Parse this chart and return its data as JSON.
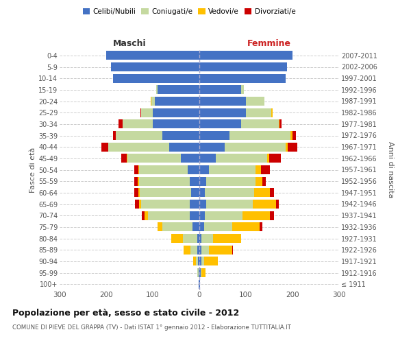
{
  "age_groups": [
    "100+",
    "95-99",
    "90-94",
    "85-89",
    "80-84",
    "75-79",
    "70-74",
    "65-69",
    "60-64",
    "55-59",
    "50-54",
    "45-49",
    "40-44",
    "35-39",
    "30-34",
    "25-29",
    "20-24",
    "15-19",
    "10-14",
    "5-9",
    "0-4"
  ],
  "birth_years": [
    "≤ 1911",
    "1912-1916",
    "1917-1921",
    "1922-1926",
    "1927-1931",
    "1932-1936",
    "1937-1941",
    "1942-1946",
    "1947-1951",
    "1952-1956",
    "1957-1961",
    "1962-1966",
    "1967-1971",
    "1972-1976",
    "1977-1981",
    "1982-1986",
    "1987-1991",
    "1992-1996",
    "1997-2001",
    "2002-2006",
    "2007-2011"
  ],
  "male_celibi": [
    1,
    2,
    3,
    4,
    5,
    15,
    20,
    20,
    18,
    20,
    25,
    40,
    65,
    80,
    100,
    100,
    95,
    90,
    185,
    190,
    200
  ],
  "male_coniugati": [
    0,
    2,
    5,
    15,
    30,
    65,
    90,
    105,
    110,
    110,
    105,
    115,
    130,
    100,
    65,
    25,
    8,
    2,
    0,
    0,
    0
  ],
  "male_vedovi": [
    0,
    1,
    5,
    15,
    25,
    10,
    8,
    5,
    3,
    2,
    1,
    1,
    0,
    0,
    0,
    0,
    1,
    0,
    0,
    0,
    0
  ],
  "male_divorziati": [
    0,
    0,
    0,
    0,
    0,
    0,
    5,
    8,
    8,
    8,
    8,
    12,
    15,
    5,
    8,
    2,
    0,
    0,
    0,
    0,
    0
  ],
  "female_celibi": [
    1,
    3,
    5,
    5,
    5,
    10,
    12,
    15,
    12,
    15,
    20,
    35,
    55,
    65,
    90,
    100,
    100,
    90,
    185,
    188,
    200
  ],
  "female_coniugati": [
    0,
    2,
    5,
    15,
    25,
    60,
    80,
    100,
    105,
    105,
    100,
    110,
    130,
    130,
    80,
    55,
    40,
    5,
    0,
    0,
    0
  ],
  "female_vedovi": [
    1,
    8,
    30,
    50,
    60,
    60,
    60,
    50,
    35,
    15,
    12,
    5,
    5,
    5,
    2,
    2,
    0,
    0,
    0,
    0,
    0
  ],
  "female_divorziati": [
    0,
    0,
    0,
    2,
    0,
    5,
    8,
    5,
    8,
    8,
    20,
    25,
    20,
    8,
    5,
    0,
    0,
    0,
    0,
    0,
    0
  ],
  "color_celibi": "#4472c4",
  "color_coniugati": "#c5d9a0",
  "color_vedovi": "#ffc000",
  "color_divorziati": "#cc0000",
  "title_main": "Popolazione per età, sesso e stato civile - 2012",
  "title_sub": "COMUNE DI PIEVE DEL GRAPPA (TV) - Dati ISTAT 1° gennaio 2012 - Elaborazione TUTTITALIA.IT",
  "ylabel_left": "Fasce di età",
  "ylabel_right": "Anni di nascita",
  "xlabel_maschi": "Maschi",
  "xlabel_femmine": "Femmine",
  "xlim": 300,
  "bg_color": "#ffffff",
  "grid_color": "#cccccc"
}
